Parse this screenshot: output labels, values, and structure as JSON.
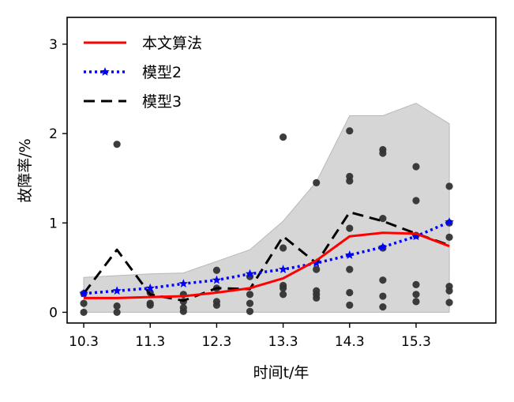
{
  "chart_data": {
    "type": "line",
    "xlabel": "时间t/年",
    "ylabel": "故障率/%",
    "xlim": [
      10.05,
      16.5
    ],
    "ylim": [
      -0.12,
      3.3
    ],
    "x_ticks": [
      10.3,
      11.3,
      12.3,
      13.3,
      14.3,
      15.3
    ],
    "x_tick_labels": [
      "10.3",
      "11.3",
      "12.3",
      "13.3",
      "14.3",
      "15.3"
    ],
    "y_ticks": [
      0,
      1,
      2,
      3
    ],
    "y_tick_labels": [
      "0",
      "1",
      "2",
      "3"
    ],
    "legend_position": "top-left",
    "grid": false,
    "series": [
      {
        "name": "本文算法",
        "color": "#ff0000",
        "style": "solid",
        "x": [
          10.3,
          10.8,
          11.3,
          11.8,
          12.3,
          12.8,
          13.3,
          13.8,
          14.3,
          14.8,
          15.3,
          15.8
        ],
        "values": [
          0.16,
          0.16,
          0.17,
          0.18,
          0.22,
          0.27,
          0.38,
          0.58,
          0.85,
          0.89,
          0.88,
          0.74
        ]
      },
      {
        "name": "模型2",
        "color": "#0000ff",
        "style": "dotted",
        "marker": "star",
        "x": [
          10.3,
          10.8,
          11.3,
          11.8,
          12.3,
          12.8,
          13.3,
          13.8,
          14.3,
          14.8,
          15.3,
          15.8
        ],
        "values": [
          0.21,
          0.24,
          0.27,
          0.32,
          0.36,
          0.43,
          0.48,
          0.55,
          0.64,
          0.73,
          0.85,
          1.01
        ]
      },
      {
        "name": "模型3",
        "color": "#000000",
        "style": "dashed",
        "x": [
          10.3,
          10.8,
          11.3,
          11.8,
          12.3,
          12.8,
          13.3,
          13.8,
          14.3,
          14.8,
          15.3,
          15.8
        ],
        "values": [
          0.21,
          0.7,
          0.2,
          0.13,
          0.27,
          0.26,
          0.85,
          0.55,
          1.12,
          1.02,
          0.88,
          0.75
        ]
      }
    ],
    "band": {
      "color": "#d6d6d6",
      "x": [
        10.3,
        10.8,
        11.3,
        11.8,
        12.3,
        12.8,
        13.3,
        13.8,
        14.3,
        14.8,
        15.3,
        15.8
      ],
      "upper": [
        0.39,
        0.41,
        0.43,
        0.44,
        0.57,
        0.7,
        1.02,
        1.46,
        2.2,
        2.2,
        2.34,
        2.11
      ],
      "lower": [
        0.0,
        0.0,
        0.0,
        0.0,
        0.0,
        0.0,
        0.0,
        0.0,
        0.0,
        0.0,
        0.0,
        0.0
      ]
    },
    "scatter": {
      "color": "#333333",
      "points": [
        [
          10.3,
          0.0
        ],
        [
          10.3,
          0.1
        ],
        [
          10.3,
          0.21
        ],
        [
          10.8,
          0.0
        ],
        [
          10.8,
          0.07
        ],
        [
          10.8,
          1.88
        ],
        [
          11.3,
          0.08
        ],
        [
          11.3,
          0.1
        ],
        [
          11.3,
          0.22
        ],
        [
          11.8,
          0.01
        ],
        [
          11.8,
          0.05
        ],
        [
          11.8,
          0.12
        ],
        [
          11.8,
          0.2
        ],
        [
          12.3,
          0.08
        ],
        [
          12.3,
          0.12
        ],
        [
          12.3,
          0.27
        ],
        [
          12.3,
          0.47
        ],
        [
          12.8,
          0.01
        ],
        [
          12.8,
          0.1
        ],
        [
          12.8,
          0.2
        ],
        [
          12.8,
          0.4
        ],
        [
          13.3,
          0.2
        ],
        [
          13.3,
          0.27
        ],
        [
          13.3,
          0.3
        ],
        [
          13.3,
          0.72
        ],
        [
          13.3,
          1.96
        ],
        [
          13.8,
          0.16
        ],
        [
          13.8,
          0.2
        ],
        [
          13.8,
          0.24
        ],
        [
          13.8,
          0.48
        ],
        [
          13.8,
          1.45
        ],
        [
          14.3,
          0.08
        ],
        [
          14.3,
          0.22
        ],
        [
          14.3,
          0.48
        ],
        [
          14.3,
          0.94
        ],
        [
          14.3,
          1.47
        ],
        [
          14.3,
          1.52
        ],
        [
          14.3,
          2.03
        ],
        [
          14.8,
          0.06
        ],
        [
          14.8,
          0.18
        ],
        [
          14.8,
          0.36
        ],
        [
          14.8,
          0.72
        ],
        [
          14.8,
          1.05
        ],
        [
          14.8,
          1.78
        ],
        [
          14.8,
          1.82
        ],
        [
          15.3,
          0.12
        ],
        [
          15.3,
          0.2
        ],
        [
          15.3,
          0.31
        ],
        [
          15.3,
          0.86
        ],
        [
          15.3,
          1.25
        ],
        [
          15.3,
          1.63
        ],
        [
          15.8,
          0.11
        ],
        [
          15.8,
          0.24
        ],
        [
          15.8,
          0.29
        ],
        [
          15.8,
          0.84
        ],
        [
          15.8,
          1.0
        ],
        [
          15.8,
          1.41
        ]
      ]
    }
  }
}
